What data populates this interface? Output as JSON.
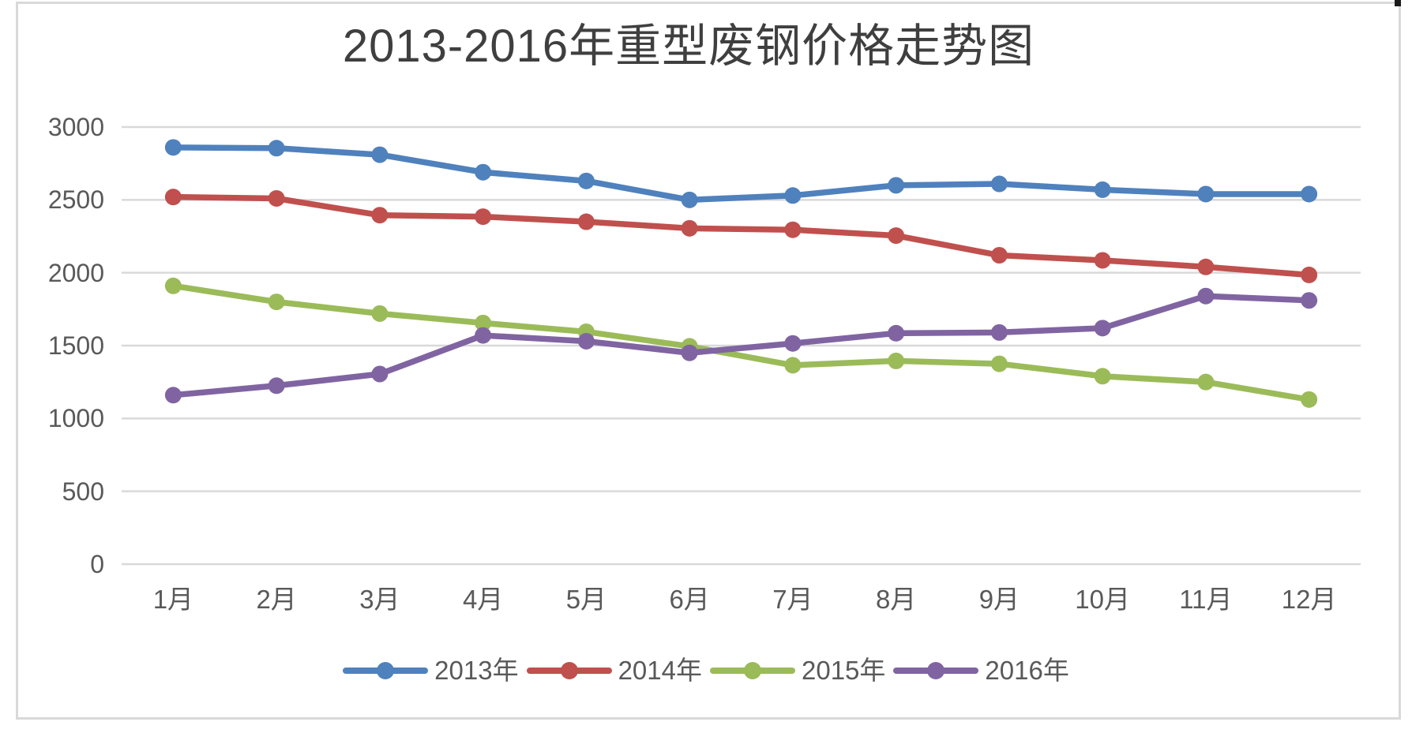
{
  "chart_data": {
    "type": "line",
    "title": "2013-2016年重型废钢价格走势图",
    "xlabel": "",
    "ylabel": "",
    "categories": [
      "1月",
      "2月",
      "3月",
      "4月",
      "5月",
      "6月",
      "7月",
      "8月",
      "9月",
      "10月",
      "11月",
      "12月"
    ],
    "yticks": [
      3000,
      2500,
      2000,
      1500,
      1000,
      500,
      0
    ],
    "ylim": [
      0,
      3000
    ],
    "grid": "horizontal",
    "legend_position": "bottom",
    "series": [
      {
        "name": "2013年",
        "color": "#4F81BD",
        "values": [
          2860,
          2855,
          2810,
          2690,
          2630,
          2500,
          2530,
          2600,
          2610,
          2570,
          2540,
          2540
        ]
      },
      {
        "name": "2014年",
        "color": "#C0504D",
        "values": [
          2520,
          2510,
          2395,
          2385,
          2350,
          2305,
          2295,
          2255,
          2120,
          2085,
          2040,
          1985
        ]
      },
      {
        "name": "2015年",
        "color": "#9BBB59",
        "values": [
          1910,
          1800,
          1720,
          1655,
          1595,
          1495,
          1365,
          1395,
          1375,
          1290,
          1250,
          1130
        ]
      },
      {
        "name": "2016年",
        "color": "#8064A2",
        "values": [
          1160,
          1225,
          1305,
          1570,
          1530,
          1450,
          1515,
          1585,
          1590,
          1620,
          1840,
          1810
        ]
      }
    ],
    "colors": {
      "gridline": "#D9D9D9",
      "axis_text": "#595959",
      "title_text": "#3F3F3F"
    }
  }
}
